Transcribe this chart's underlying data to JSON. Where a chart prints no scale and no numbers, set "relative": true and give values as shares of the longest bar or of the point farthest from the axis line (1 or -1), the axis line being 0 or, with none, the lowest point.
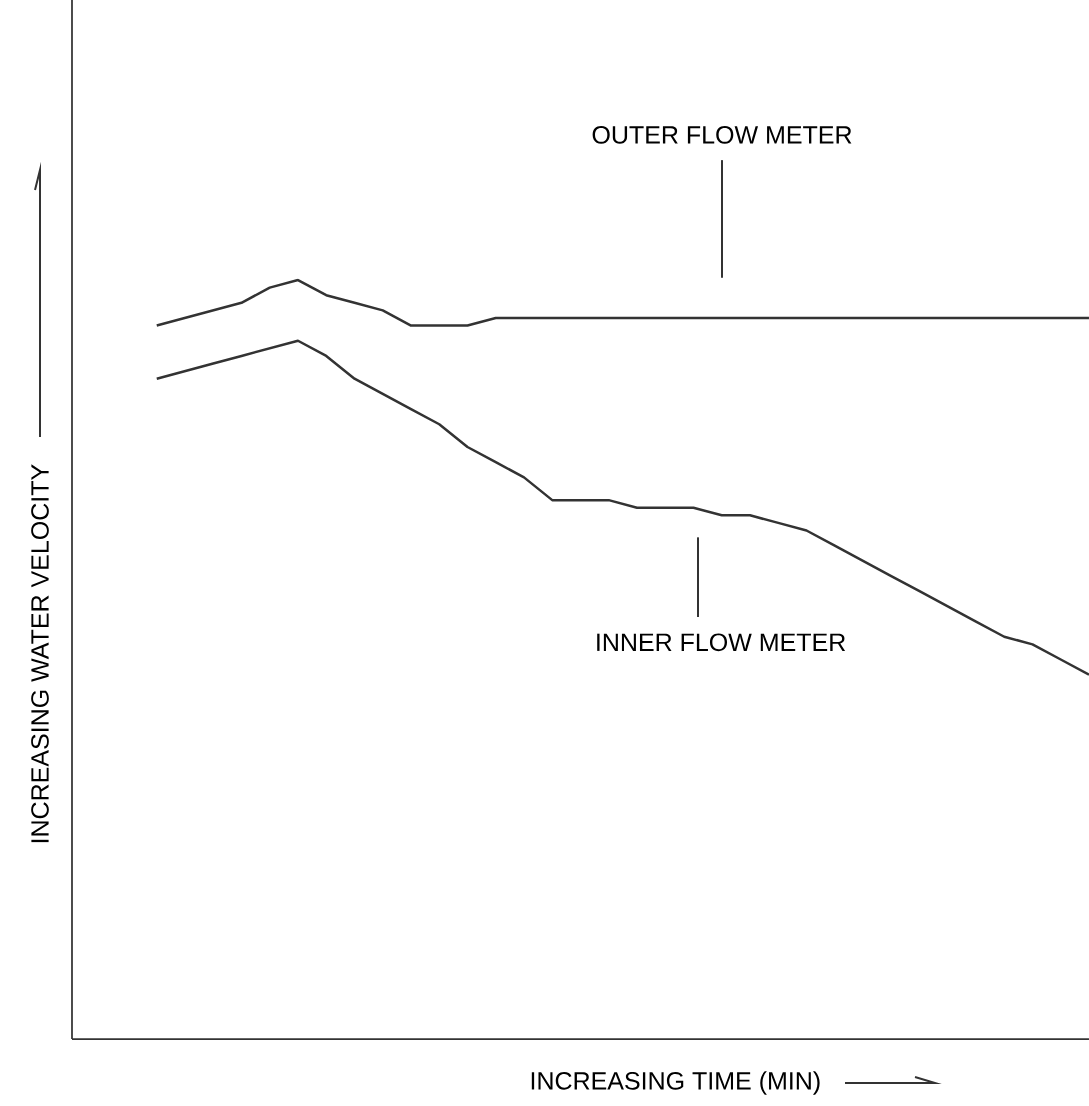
{
  "chart_data": {
    "type": "line",
    "relative": true,
    "xlabel": "INCREASING TIME (MIN)",
    "ylabel": "INCREASING WATER VELOCITY",
    "categories": [
      null,
      null,
      null,
      null,
      null,
      null,
      null,
      null,
      null,
      null,
      null,
      null,
      null,
      null,
      null,
      null,
      null,
      null,
      null,
      null,
      null,
      null,
      null,
      null,
      null,
      null,
      null,
      null,
      null,
      null,
      null,
      null,
      null,
      null,
      null,
      null,
      null
    ],
    "series": [
      {
        "color": "#333333",
        "values": [
          null,
          null,
          null,
          0.94,
          0.95,
          0.96,
          0.97,
          0.99,
          1.0,
          0.98,
          0.97,
          0.96,
          0.94,
          0.94,
          0.94,
          0.95,
          0.95,
          0.95,
          0.95,
          0.95,
          0.95,
          0.95,
          0.95,
          0.95,
          0.95,
          0.95,
          0.95,
          0.95,
          0.95,
          0.95,
          0.95,
          0.95,
          0.95,
          0.95,
          0.95,
          0.95,
          0.95
        ]
      },
      {
        "color": "#333333",
        "values": [
          null,
          null,
          null,
          0.87,
          0.88,
          0.89,
          0.9,
          0.91,
          0.92,
          0.9,
          0.87,
          0.85,
          0.83,
          0.81,
          0.78,
          0.76,
          0.74,
          0.71,
          0.71,
          0.71,
          0.7,
          0.7,
          0.7,
          0.69,
          0.69,
          0.68,
          0.67,
          0.65,
          0.63,
          0.61,
          0.59,
          0.57,
          0.55,
          0.53,
          0.52,
          0.5,
          0.48
        ]
      }
    ],
    "annotations": [
      "OUTER FLOW METER",
      "INNER FLOW METER"
    ],
    "marker": "none",
    "line_style": "solid"
  }
}
